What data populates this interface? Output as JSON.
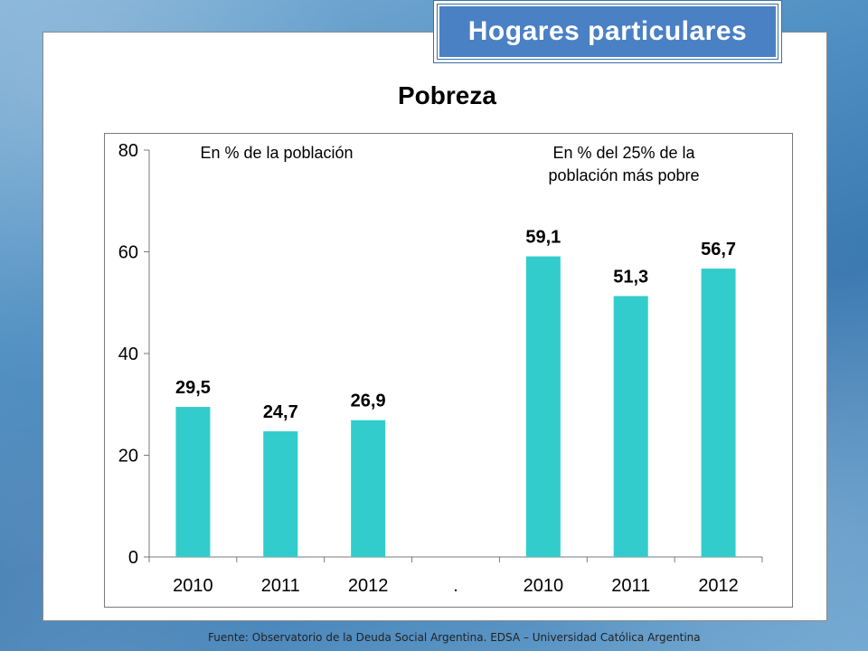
{
  "slide": {
    "header_title": "Hogares particulares",
    "source_note": "Fuente:  Observatorio de  la Deuda Social Argentina. EDSA  – Universidad Católica Argentina"
  },
  "chart_data": {
    "type": "bar",
    "title": "Pobreza",
    "xlabel": "",
    "ylabel": "",
    "ylim": [
      0,
      80
    ],
    "yticks": [
      "0",
      "20",
      "40",
      "60",
      "80"
    ],
    "categories": [
      "2010",
      "2011",
      "2012",
      ".",
      "2010",
      "2011",
      "2012"
    ],
    "values": [
      29.5,
      24.7,
      26.9,
      null,
      59.1,
      51.3,
      56.7
    ],
    "data_labels": [
      "29,5",
      "24,7",
      "26,9",
      "",
      "59,1",
      "51,3",
      "56,7"
    ],
    "bar_color": "#33cccc",
    "annotations": [
      {
        "text": "En % de la población"
      },
      {
        "text": "En % del 25% de la",
        "text2": "población más pobre"
      }
    ],
    "grid": false
  }
}
